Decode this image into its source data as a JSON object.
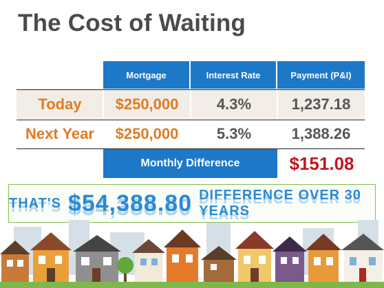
{
  "title": "The Cost of Waiting",
  "table": {
    "headers": [
      "Mortgage",
      "Interest Rate",
      "Payment (P&I)"
    ],
    "rows": [
      {
        "label": "Today",
        "mortgage": "$250,000",
        "rate": "4.3%",
        "payment": "1,237.18"
      },
      {
        "label": "Next Year",
        "mortgage": "$250,000",
        "rate": "5.3%",
        "payment": "1,388.26"
      }
    ],
    "difference_label": "Monthly  Difference",
    "difference_value": "$151.08"
  },
  "banner": {
    "prefix": "THAT'S",
    "amount": "$54,388.80",
    "suffix": "DIFFERENCE OVER 30 YEARS"
  },
  "colors": {
    "header_blue": "#1d78c8",
    "orange": "#e07b22",
    "red": "#c0171f",
    "banner_blue": "#2a8ad6",
    "banner_border": "#7fbf4a"
  }
}
